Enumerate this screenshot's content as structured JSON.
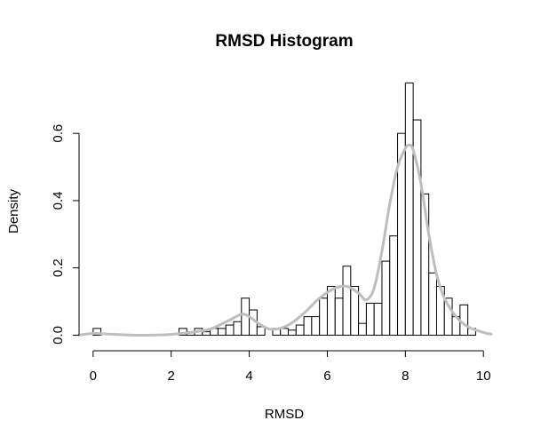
{
  "chart_data": {
    "type": "bar",
    "title": "RMSD Histogram",
    "xlabel": "RMSD",
    "ylabel": "Density",
    "xlim": [
      -0.36,
      10.2
    ],
    "ylim": [
      -0.02,
      0.78
    ],
    "xticks": [
      0,
      2,
      4,
      6,
      8,
      10
    ],
    "yticks": [
      0.0,
      0.2,
      0.4,
      0.6
    ],
    "xtick_labels": [
      "0",
      "2",
      "4",
      "6",
      "8",
      "10"
    ],
    "ytick_labels": [
      "0.0",
      "0.2",
      "0.4",
      "0.6"
    ],
    "grid": false,
    "bin_width": 0.2,
    "bins": [
      {
        "x0": 0.0,
        "x1": 0.2,
        "density": 0.02
      },
      {
        "x0": 2.2,
        "x1": 2.4,
        "density": 0.02
      },
      {
        "x0": 2.4,
        "x1": 2.6,
        "density": 0.01
      },
      {
        "x0": 2.6,
        "x1": 2.8,
        "density": 0.02
      },
      {
        "x0": 2.8,
        "x1": 3.0,
        "density": 0.01
      },
      {
        "x0": 3.0,
        "x1": 3.2,
        "density": 0.02
      },
      {
        "x0": 3.2,
        "x1": 3.4,
        "density": 0.02
      },
      {
        "x0": 3.4,
        "x1": 3.6,
        "density": 0.03
      },
      {
        "x0": 3.6,
        "x1": 3.8,
        "density": 0.04
      },
      {
        "x0": 3.8,
        "x1": 4.0,
        "density": 0.11
      },
      {
        "x0": 4.0,
        "x1": 4.2,
        "density": 0.075
      },
      {
        "x0": 4.2,
        "x1": 4.4,
        "density": 0.025
      },
      {
        "x0": 4.4,
        "x1": 4.6,
        "density": 0.0
      },
      {
        "x0": 4.6,
        "x1": 4.8,
        "density": 0.02
      },
      {
        "x0": 4.8,
        "x1": 5.0,
        "density": 0.02
      },
      {
        "x0": 5.0,
        "x1": 5.2,
        "density": 0.015
      },
      {
        "x0": 5.2,
        "x1": 5.4,
        "density": 0.03
      },
      {
        "x0": 5.4,
        "x1": 5.6,
        "density": 0.055
      },
      {
        "x0": 5.6,
        "x1": 5.8,
        "density": 0.055
      },
      {
        "x0": 5.8,
        "x1": 6.0,
        "density": 0.11
      },
      {
        "x0": 6.0,
        "x1": 6.2,
        "density": 0.145
      },
      {
        "x0": 6.2,
        "x1": 6.4,
        "density": 0.11
      },
      {
        "x0": 6.4,
        "x1": 6.6,
        "density": 0.205
      },
      {
        "x0": 6.6,
        "x1": 6.8,
        "density": 0.145
      },
      {
        "x0": 6.8,
        "x1": 7.0,
        "density": 0.035
      },
      {
        "x0": 7.0,
        "x1": 7.2,
        "density": 0.095
      },
      {
        "x0": 7.2,
        "x1": 7.4,
        "density": 0.095
      },
      {
        "x0": 7.4,
        "x1": 7.6,
        "density": 0.22
      },
      {
        "x0": 7.6,
        "x1": 7.8,
        "density": 0.295
      },
      {
        "x0": 7.8,
        "x1": 8.0,
        "density": 0.6
      },
      {
        "x0": 8.0,
        "x1": 8.2,
        "density": 0.75
      },
      {
        "x0": 8.2,
        "x1": 8.4,
        "density": 0.64
      },
      {
        "x0": 8.4,
        "x1": 8.6,
        "density": 0.42
      },
      {
        "x0": 8.6,
        "x1": 8.8,
        "density": 0.185
      },
      {
        "x0": 8.8,
        "x1": 9.0,
        "density": 0.145
      },
      {
        "x0": 9.0,
        "x1": 9.2,
        "density": 0.11
      },
      {
        "x0": 9.2,
        "x1": 9.4,
        "density": 0.055
      },
      {
        "x0": 9.4,
        "x1": 9.6,
        "density": 0.09
      },
      {
        "x0": 9.6,
        "x1": 9.8,
        "density": 0.02
      }
    ],
    "density_curve": {
      "color": "#bebebe",
      "x": [
        -0.36,
        0.0,
        0.4,
        1.0,
        1.5,
        2.0,
        2.5,
        3.0,
        3.5,
        3.8,
        4.0,
        4.3,
        4.6,
        5.0,
        5.4,
        5.8,
        6.2,
        6.5,
        6.8,
        7.0,
        7.2,
        7.4,
        7.6,
        7.8,
        8.0,
        8.1,
        8.2,
        8.4,
        8.6,
        8.8,
        9.0,
        9.3,
        9.6,
        10.0,
        10.2
      ],
      "y": [
        0.0,
        0.005,
        0.003,
        0.0,
        0.0,
        0.002,
        0.008,
        0.018,
        0.045,
        0.062,
        0.055,
        0.03,
        0.017,
        0.03,
        0.065,
        0.11,
        0.14,
        0.145,
        0.125,
        0.105,
        0.14,
        0.25,
        0.39,
        0.5,
        0.555,
        0.565,
        0.55,
        0.45,
        0.3,
        0.18,
        0.11,
        0.055,
        0.025,
        0.008,
        0.003
      ]
    }
  }
}
